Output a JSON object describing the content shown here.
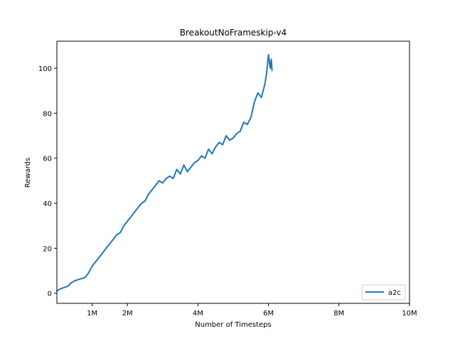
{
  "chart_data": {
    "type": "line",
    "title": "BreakoutNoFrameskip-v4",
    "xlabel": "Number of Timesteps",
    "ylabel": "Rewards",
    "xlim": [
      0,
      10000000
    ],
    "ylim": [
      -4.5,
      112
    ],
    "x_ticks": [
      {
        "value": 1000000,
        "label": "1M"
      },
      {
        "value": 2000000,
        "label": "2M"
      },
      {
        "value": 4000000,
        "label": "4M"
      },
      {
        "value": 6000000,
        "label": "6M"
      },
      {
        "value": 8000000,
        "label": "8M"
      },
      {
        "value": 10000000,
        "label": "10M"
      }
    ],
    "y_ticks": [
      {
        "value": 0,
        "label": "0"
      },
      {
        "value": 20,
        "label": "20"
      },
      {
        "value": 40,
        "label": "40"
      },
      {
        "value": 60,
        "label": "60"
      },
      {
        "value": 80,
        "label": "80"
      },
      {
        "value": 100,
        "label": "100"
      }
    ],
    "grid": false,
    "legend_position": "bottom-right",
    "series": [
      {
        "name": "a2c",
        "color": "#1f77b4",
        "x": [
          0,
          100000,
          200000,
          300000,
          400000,
          500000,
          600000,
          700000,
          800000,
          900000,
          1000000,
          1100000,
          1200000,
          1300000,
          1400000,
          1500000,
          1600000,
          1700000,
          1800000,
          1900000,
          2000000,
          2100000,
          2200000,
          2300000,
          2400000,
          2500000,
          2600000,
          2700000,
          2800000,
          2900000,
          3000000,
          3100000,
          3200000,
          3300000,
          3400000,
          3500000,
          3600000,
          3700000,
          3800000,
          3900000,
          4000000,
          4100000,
          4200000,
          4300000,
          4400000,
          4500000,
          4600000,
          4700000,
          4800000,
          4900000,
          5000000,
          5100000,
          5200000,
          5300000,
          5400000,
          5500000,
          5600000,
          5700000,
          5800000,
          5900000,
          5950000,
          6000000,
          6050000,
          6080000,
          6100000
        ],
        "y": [
          1,
          2,
          2.5,
          3,
          4.5,
          5.5,
          6,
          6.5,
          7,
          9,
          12,
          14,
          16,
          18,
          20,
          22,
          24,
          26,
          27,
          30,
          32,
          34,
          36,
          38,
          40,
          41,
          44,
          46,
          48,
          50,
          49,
          51,
          52,
          51,
          55,
          53,
          57,
          54,
          56,
          58,
          59,
          61,
          60,
          64,
          62,
          65,
          67,
          66,
          70,
          68,
          69,
          71,
          72,
          76,
          75,
          78,
          85,
          89,
          87,
          93,
          98,
          106,
          100,
          104,
          99
        ]
      }
    ]
  }
}
